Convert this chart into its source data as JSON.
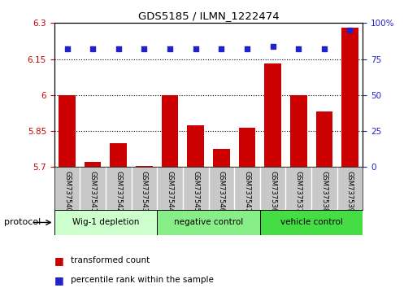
{
  "title": "GDS5185 / ILMN_1222474",
  "samples": [
    "GSM737540",
    "GSM737541",
    "GSM737542",
    "GSM737543",
    "GSM737544",
    "GSM737545",
    "GSM737546",
    "GSM737547",
    "GSM737536",
    "GSM737537",
    "GSM737538",
    "GSM737539"
  ],
  "transformed_counts": [
    6.0,
    5.72,
    5.8,
    5.705,
    6.0,
    5.875,
    5.775,
    5.865,
    6.13,
    6.0,
    5.93,
    6.28
  ],
  "percentile_rank_values": [
    82,
    82,
    82,
    82,
    82,
    82,
    82,
    82,
    84,
    82,
    82,
    95
  ],
  "bar_color": "#cc0000",
  "dot_color": "#2222cc",
  "ylim_left": [
    5.7,
    6.3
  ],
  "ylim_right": [
    0,
    100
  ],
  "yticks_left": [
    5.7,
    5.85,
    6.0,
    6.15,
    6.3
  ],
  "yticks_right": [
    0,
    25,
    50,
    75,
    100
  ],
  "ytick_labels_left": [
    "5.7",
    "5.85",
    "6",
    "6.15",
    "6.3"
  ],
  "ytick_labels_right": [
    "0",
    "25",
    "50",
    "75",
    "100%"
  ],
  "hlines": [
    5.85,
    6.0,
    6.15
  ],
  "groups": [
    {
      "label": "Wig-1 depletion",
      "start": 0,
      "end": 4,
      "color": "#ccffcc"
    },
    {
      "label": "negative control",
      "start": 4,
      "end": 8,
      "color": "#88ee88"
    },
    {
      "label": "vehicle control",
      "start": 8,
      "end": 12,
      "color": "#44dd44"
    }
  ],
  "protocol_label": "protocol",
  "legend_bar_label": "transformed count",
  "legend_dot_label": "percentile rank within the sample",
  "background_color": "#ffffff",
  "plot_bg_color": "#ffffff",
  "sample_bg_color": "#c8c8c8"
}
